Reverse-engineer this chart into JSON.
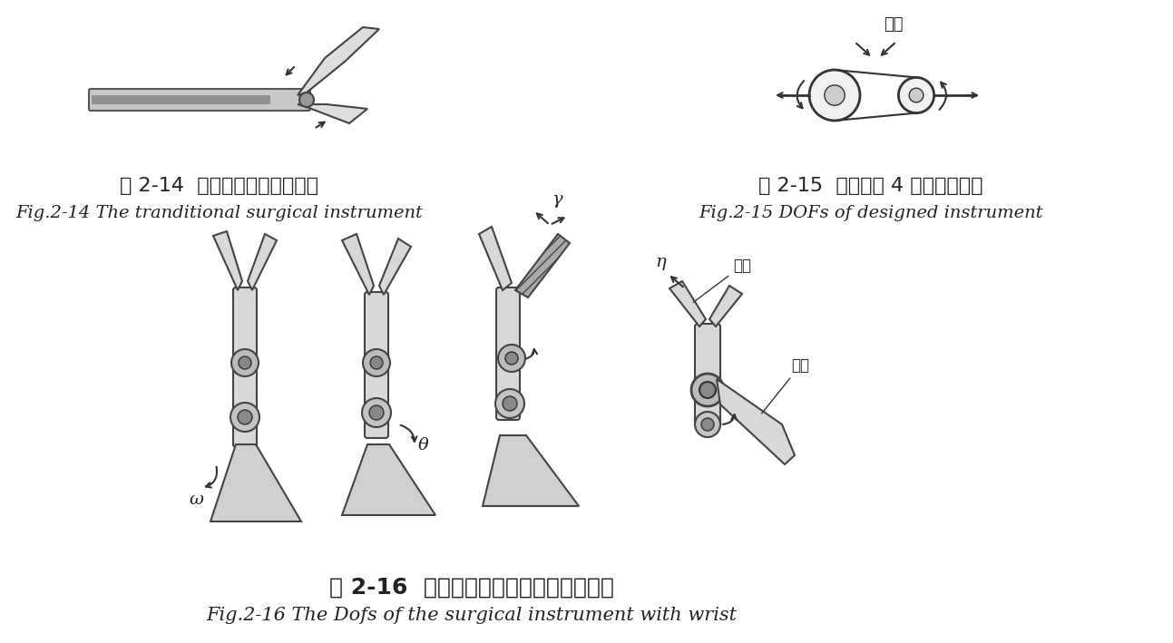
{
  "bg_color": "#ffffff",
  "fig_width": 12.93,
  "fig_height": 7.09,
  "caption_14_zh": "图 2-14  传统微创外科手术器械",
  "caption_14_en": "Fig.2-14 The tranditional surgical instrument",
  "caption_15_zh": "图 2-15  手术器械 4 个自由度分析",
  "caption_15_en": "Fig.2-15 DOFs of designed instrument",
  "caption_16_zh": "图 2-16  带有腕部装置的手术器械自由度",
  "caption_16_en": "Fig.2-16 The Dofs of the surgical instrument with wrist",
  "label_wan_bu_top": "腕部",
  "label_xiao_zhua": "小爪",
  "label_wan_bu_right": "腕部",
  "label_gamma": "γ",
  "label_theta": "θ",
  "label_omega": "ω",
  "label_eta": "η",
  "font_zh_size": 16,
  "font_en_size": 14,
  "caption_color": "#222222"
}
